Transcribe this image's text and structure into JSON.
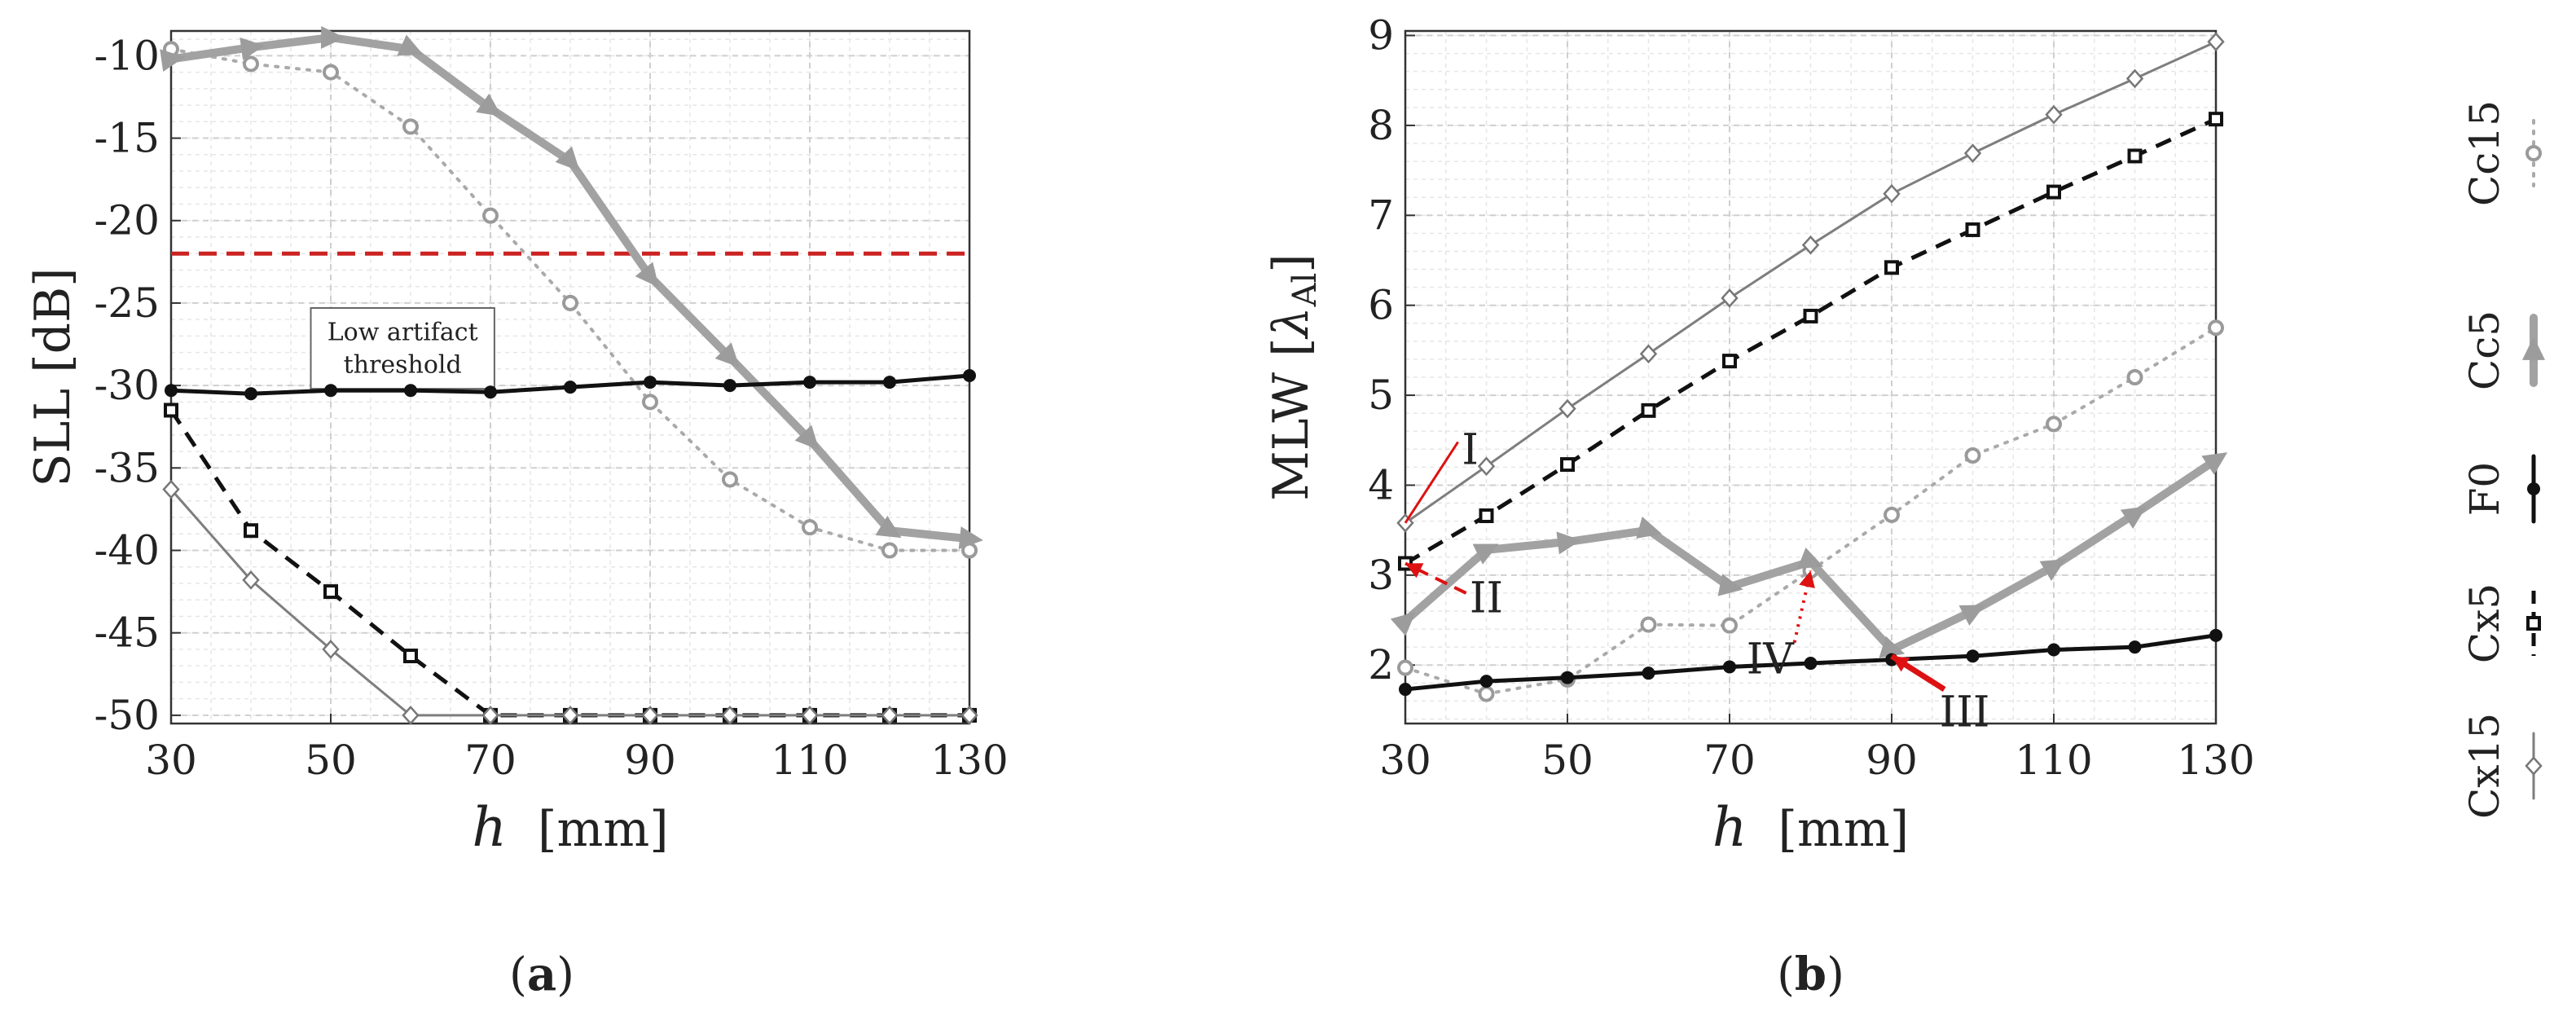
{
  "chart_data": [
    {
      "type": "line",
      "panel_label": "a",
      "ylabel_main": "SLL",
      "ylabel_unit": "[dB]",
      "xlabel_var": "h",
      "xlabel_unit": "[mm]",
      "xlim": [
        30,
        130
      ],
      "ylim": [
        -50.5,
        -8.5
      ],
      "xticks": [
        30,
        50,
        70,
        90,
        110,
        130
      ],
      "xtick_labels": [
        "30",
        "50",
        "70",
        "90",
        "110",
        "130"
      ],
      "yticks": [
        -10,
        -15,
        -20,
        -25,
        -30,
        -35,
        -40,
        -45,
        -50
      ],
      "ytick_labels": [
        "-10",
        "-15",
        "-20",
        "-25",
        "-30",
        "-35",
        "-40",
        "-45",
        "-50"
      ],
      "grid": true,
      "x": [
        30,
        40,
        50,
        60,
        70,
        80,
        90,
        100,
        110,
        120,
        130
      ],
      "series": [
        {
          "name": "Cc15",
          "style": "dotted-gray",
          "marker": "circle",
          "values": [
            -9.6,
            -10.5,
            -11.0,
            -14.3,
            -19.7,
            -25.0,
            -31.0,
            -35.7,
            -38.6,
            -40.0,
            -40.0
          ]
        },
        {
          "name": "Cc5",
          "style": "thick-gray",
          "marker": "triangle",
          "values": [
            -10.2,
            -9.5,
            -8.9,
            -9.6,
            -13.2,
            -16.4,
            -23.4,
            -28.3,
            -33.3,
            -38.8,
            -39.3
          ]
        },
        {
          "name": "F0",
          "style": "solid-black",
          "marker": "dot",
          "values": [
            -30.3,
            -30.5,
            -30.3,
            -30.3,
            -30.4,
            -30.1,
            -29.8,
            -30.0,
            -29.8,
            -29.8,
            -29.4
          ]
        },
        {
          "name": "Cx5",
          "style": "dashed-black",
          "marker": "square",
          "values": [
            -31.5,
            -38.8,
            -42.5,
            -46.4,
            -50.0,
            -50.0,
            -50.0,
            -50.0,
            -50.0,
            -50.0,
            -50.0
          ]
        },
        {
          "name": "Cx15",
          "style": "thin-gray",
          "marker": "diamond",
          "values": [
            -36.3,
            -41.8,
            -46.0,
            -50.0,
            -50.0,
            -50.0,
            -50.0,
            -50.0,
            -50.0,
            -50.0,
            -50.0
          ]
        }
      ],
      "threshold": {
        "value": -22,
        "color": "#cc2222",
        "label_line1": "Low artifact",
        "label_line2": "threshold"
      }
    },
    {
      "type": "line",
      "panel_label": "b",
      "ylabel_main": "MLW",
      "ylabel_unit_lambda": "λ",
      "ylabel_unit_sub": "Al",
      "xlabel_var": "h",
      "xlabel_unit": "[mm]",
      "xlim": [
        30,
        130
      ],
      "ylim": [
        1.35,
        9.05
      ],
      "xticks": [
        30,
        50,
        70,
        90,
        110,
        130
      ],
      "xtick_labels": [
        "30",
        "50",
        "70",
        "90",
        "110",
        "130"
      ],
      "yticks": [
        2,
        3,
        4,
        5,
        6,
        7,
        8,
        9
      ],
      "ytick_labels": [
        "2",
        "3",
        "4",
        "5",
        "6",
        "7",
        "8",
        "9"
      ],
      "grid": true,
      "x": [
        30,
        40,
        50,
        60,
        70,
        80,
        90,
        100,
        110,
        120,
        130
      ],
      "series": [
        {
          "name": "Cc15",
          "style": "dotted-gray",
          "marker": "circle",
          "values": [
            1.97,
            1.68,
            1.84,
            2.45,
            2.44,
            3.05,
            3.67,
            4.33,
            4.68,
            5.2,
            5.75
          ]
        },
        {
          "name": "Cc5",
          "style": "thick-gray",
          "marker": "triangle",
          "values": [
            2.49,
            3.28,
            3.37,
            3.5,
            2.87,
            3.15,
            2.17,
            2.6,
            3.1,
            3.68,
            4.28
          ]
        },
        {
          "name": "F0",
          "style": "solid-black",
          "marker": "dot",
          "values": [
            1.73,
            1.82,
            1.86,
            1.91,
            1.98,
            2.02,
            2.06,
            2.1,
            2.17,
            2.2,
            2.33
          ]
        },
        {
          "name": "Cx5",
          "style": "dashed-black",
          "marker": "square",
          "values": [
            3.13,
            3.66,
            4.23,
            4.83,
            5.38,
            5.88,
            6.42,
            6.84,
            7.26,
            7.66,
            8.07
          ]
        },
        {
          "name": "Cx15",
          "style": "thin-gray",
          "marker": "diamond",
          "values": [
            3.58,
            4.21,
            4.85,
            5.46,
            6.08,
            6.67,
            7.24,
            7.69,
            8.12,
            8.52,
            8.93
          ]
        }
      ],
      "annotations": [
        {
          "id": "I",
          "text": "I",
          "target_x": 30,
          "target_y": 3.58,
          "style": "solid-thin"
        },
        {
          "id": "II",
          "text": "II",
          "target_x": 30,
          "target_y": 3.13,
          "style": "dashed"
        },
        {
          "id": "III",
          "text": "III",
          "target_x": 90,
          "target_y": 2.1,
          "style": "solid-thick"
        },
        {
          "id": "IV",
          "text": "IV",
          "target_x": 80,
          "target_y": 3.05,
          "style": "dotted"
        }
      ],
      "annotation_color": "#dd1111"
    }
  ],
  "legend": {
    "orientation": "vertical-rotated",
    "entries": [
      {
        "name": "Cc15",
        "label": "Cc15",
        "style": "dotted-gray",
        "marker": "circle"
      },
      {
        "name": "Cc5",
        "label": "Cc5",
        "style": "thick-gray",
        "marker": "triangle"
      },
      {
        "name": "F0",
        "label": "F0",
        "style": "solid-black",
        "marker": "dot"
      },
      {
        "name": "Cx5",
        "label": "Cx5",
        "style": "dashed-black",
        "marker": "square"
      },
      {
        "name": "Cx15",
        "label": "Cx15",
        "style": "thin-gray",
        "marker": "diamond"
      }
    ]
  }
}
